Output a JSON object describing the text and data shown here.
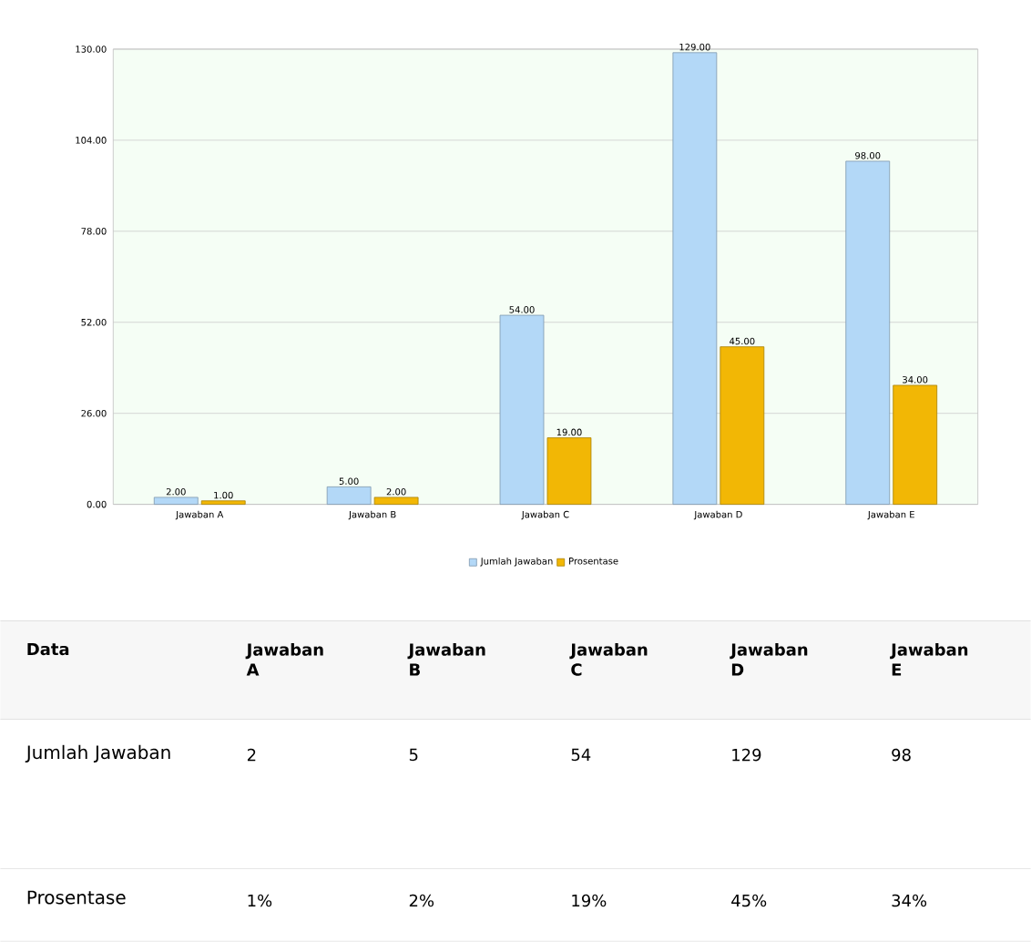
{
  "chart_data": [
    {
      "type": "bar",
      "categories": [
        "Jawaban A",
        "Jawaban B",
        "Jawaban C",
        "Jawaban D",
        "Jawaban E"
      ],
      "series": [
        {
          "name": "Jumlah Jawaban",
          "color": "#b3d8f7",
          "values": [
            2,
            5,
            54,
            129,
            98
          ],
          "value_labels": [
            "2.00",
            "5.00",
            "54.00",
            "129.00",
            "98.00"
          ]
        },
        {
          "name": "Prosentase",
          "color": "#f2b705",
          "values": [
            1,
            2,
            19,
            45,
            34
          ],
          "value_labels": [
            "1.00",
            "2.00",
            "19.00",
            "45.00",
            "34.00"
          ]
        }
      ],
      "ylim": [
        0,
        130
      ],
      "yticks": [
        {
          "value": 0,
          "label": "0.00"
        },
        {
          "value": 26,
          "label": "26.00"
        },
        {
          "value": 52,
          "label": "52.00"
        },
        {
          "value": 78,
          "label": "78.00"
        },
        {
          "value": 104,
          "label": "104.00"
        },
        {
          "value": 130,
          "label": "130.00"
        }
      ],
      "grid": "y",
      "legend": "bottom"
    },
    {
      "type": "other",
      "annotations": [
        "Data"
      ],
      "categories": [
        "Jawaban A",
        "Jawaban B",
        "Jawaban C",
        "Jawaban D",
        "Jawaban E"
      ],
      "series": [
        {
          "name": "Jumlah Jawaban",
          "values": [
            2,
            5,
            54,
            129,
            98
          ],
          "value_labels": [
            "2",
            "5",
            "54",
            "129",
            "98"
          ]
        },
        {
          "name": "Prosentase",
          "values": [
            1,
            2,
            19,
            45,
            34
          ],
          "value_labels": [
            "1%",
            "2%",
            "19%",
            "45%",
            "34%"
          ]
        }
      ]
    }
  ]
}
